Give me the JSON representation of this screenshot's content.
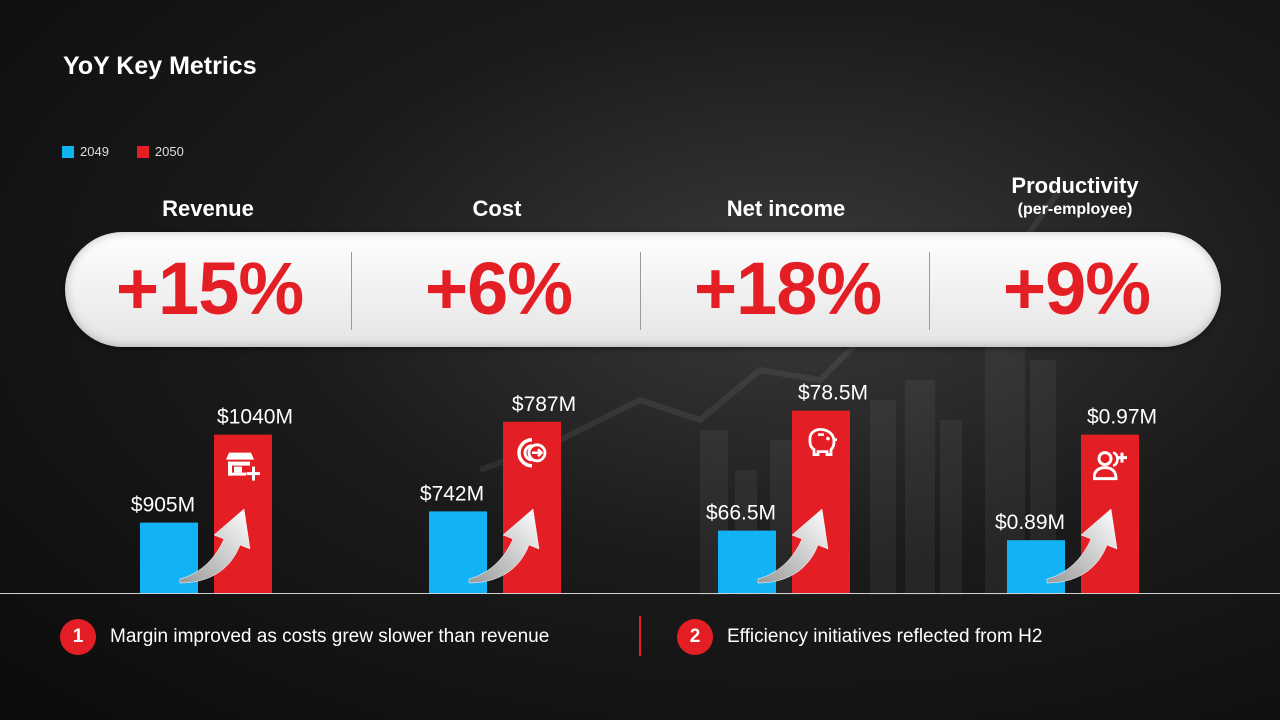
{
  "title": "YoY Key Metrics",
  "legend": [
    {
      "label": "2049",
      "color": "#12b3f5"
    },
    {
      "label": "2050",
      "color": "#e31e24"
    }
  ],
  "metrics": [
    {
      "name": "Revenue",
      "sub": "",
      "change": "+15%",
      "icon": "store-add-icon"
    },
    {
      "name": "Cost",
      "sub": "",
      "change": "+6%",
      "icon": "cost-out-icon"
    },
    {
      "name": "Net income",
      "sub": "",
      "change": "+18%",
      "icon": "piggy-bank-icon"
    },
    {
      "name": "Productivity",
      "sub": "(per-employee)",
      "change": "+9%",
      "icon": "user-add-icon"
    }
  ],
  "chart_data": {
    "type": "bar",
    "categories": [
      "Revenue",
      "Cost",
      "Net income",
      "Productivity"
    ],
    "series": [
      {
        "name": "2049",
        "color": "#12b3f5",
        "labels": [
          "$905M",
          "$742M",
          "$66.5M",
          "$0.89M"
        ]
      },
      {
        "name": "2050",
        "color": "#e31e24",
        "labels": [
          "$1040M",
          "$787M",
          "$78.5M",
          "$0.97M"
        ]
      }
    ],
    "relative_heights": [
      {
        "category": "Revenue",
        "2049": 0.44,
        "2050": 0.99
      },
      {
        "category": "Cost",
        "2049": 0.51,
        "2050": 1.07
      },
      {
        "category": "Net income",
        "2049": 0.39,
        "2050": 1.14
      },
      {
        "category": "Productivity",
        "2049": 0.33,
        "2050": 0.99
      }
    ]
  },
  "notes": [
    {
      "num": "1",
      "text": "Margin improved as costs grew slower than revenue"
    },
    {
      "num": "2",
      "text": "Efficiency initiatives reflected from H2"
    }
  ]
}
